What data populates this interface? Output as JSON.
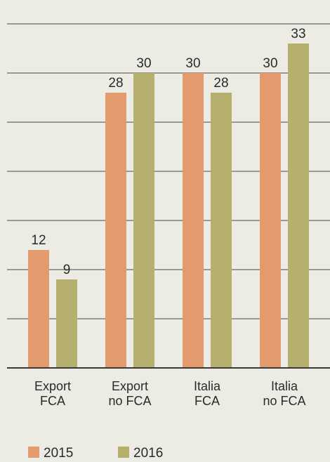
{
  "chart_data": {
    "type": "bar",
    "categories": [
      [
        "Export",
        "FCA"
      ],
      [
        "Export",
        "no FCA"
      ],
      [
        "Italia",
        "FCA"
      ],
      [
        "Italia",
        "no FCA"
      ]
    ],
    "series": [
      {
        "name": "2015",
        "color": "#e39a6c",
        "values": [
          12,
          28,
          30,
          30
        ]
      },
      {
        "name": "2016",
        "color": "#b6b06e",
        "values": [
          9,
          30,
          28,
          33
        ]
      }
    ],
    "ylim": [
      0,
      35
    ],
    "grid": true,
    "legend": "bottom"
  }
}
